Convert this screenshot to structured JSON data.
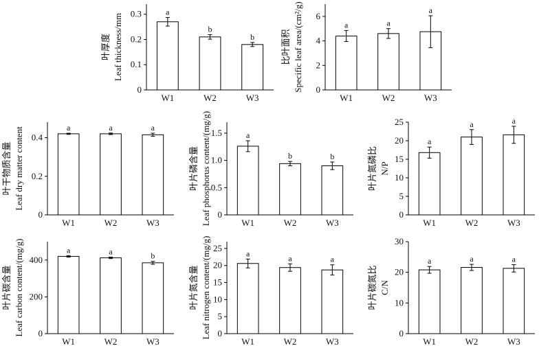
{
  "chart_data": [
    {
      "type": "bar",
      "ylabel_zh": "叶厚度",
      "ylabel_en": "Leaf thickness/mm",
      "categories": [
        "W1",
        "W2",
        "W3"
      ],
      "values": [
        0.27,
        0.21,
        0.18
      ],
      "errors": [
        0.017,
        0.009,
        0.008
      ],
      "letters": [
        "a",
        "b",
        "b"
      ],
      "ylim": [
        0,
        0.34
      ],
      "yticks": [
        0,
        0.1,
        0.2,
        0.3
      ],
      "ytick_labels": [
        "0",
        "0.1",
        "0.2",
        "0.3"
      ]
    },
    {
      "type": "bar",
      "ylabel_zh": "比叶面积",
      "ylabel_en": "Specific leaf area/(cm²/g)",
      "categories": [
        "W1",
        "W2",
        "W3"
      ],
      "values": [
        4.4,
        4.6,
        4.75
      ],
      "errors": [
        0.45,
        0.4,
        1.3
      ],
      "letters": [
        "a",
        "a",
        "a"
      ],
      "ylim": [
        0,
        7
      ],
      "yticks": [
        0,
        2,
        4,
        6
      ],
      "ytick_labels": [
        "0",
        "2",
        "4",
        "6"
      ]
    },
    {
      "type": "bar",
      "ylabel_zh": "叶干物质含量",
      "ylabel_en": "Leaf dry matter content",
      "categories": [
        "W1",
        "W2",
        "W3"
      ],
      "values": [
        0.42,
        0.42,
        0.415
      ],
      "errors": [
        0.003,
        0.004,
        0.008
      ],
      "letters": [
        "a",
        "a",
        "a"
      ],
      "ylim": [
        0,
        0.48
      ],
      "yticks": [
        0,
        0.2,
        0.4
      ],
      "ytick_labels": [
        "0",
        "0.2",
        "0.4"
      ]
    },
    {
      "type": "bar",
      "ylabel_zh": "叶片磷含量",
      "ylabel_en": "Leaf phosphorus content/(mg/g)",
      "categories": [
        "W1",
        "W2",
        "W3"
      ],
      "values": [
        1.26,
        0.94,
        0.9
      ],
      "errors": [
        0.1,
        0.04,
        0.07
      ],
      "letters": [
        "a",
        "b",
        "b"
      ],
      "ylim": [
        0,
        1.7
      ],
      "yticks": [
        0,
        0.5,
        1.0,
        1.5
      ],
      "ytick_labels": [
        "0",
        "0.5",
        "1.0",
        "1.5"
      ]
    },
    {
      "type": "bar",
      "ylabel_zh": "叶片氮磷比",
      "ylabel_en": "N/P",
      "categories": [
        "W1",
        "W2",
        "W3"
      ],
      "values": [
        16.8,
        21.0,
        21.6
      ],
      "errors": [
        1.5,
        2.0,
        2.3
      ],
      "letters": [
        "a",
        "a",
        "a"
      ],
      "ylim": [
        0,
        25
      ],
      "yticks": [
        0,
        5,
        10,
        15,
        20,
        25
      ],
      "ytick_labels": [
        "0",
        "5",
        "10",
        "15",
        "20",
        "25"
      ]
    },
    {
      "type": "bar",
      "ylabel_zh": "叶片碳含量",
      "ylabel_en": "Leaf carbon content/(mg/g)",
      "categories": [
        "W1",
        "W2",
        "W3"
      ],
      "values": [
        420,
        412,
        385
      ],
      "errors": [
        4,
        4,
        8
      ],
      "letters": [
        "a",
        "a",
        "b"
      ],
      "ylim": [
        0,
        500
      ],
      "yticks": [
        0,
        200,
        400
      ],
      "ytick_labels": [
        "0",
        "200",
        "400"
      ]
    },
    {
      "type": "bar",
      "ylabel_zh": "叶片氮含量",
      "ylabel_en": "Leaf nitrogen content/(mg/g)",
      "categories": [
        "W1",
        "W2",
        "W3"
      ],
      "values": [
        20.6,
        19.4,
        18.7
      ],
      "errors": [
        1.3,
        1.1,
        1.5
      ],
      "letters": [
        "a",
        "a",
        "a"
      ],
      "ylim": [
        0,
        27
      ],
      "yticks": [
        0,
        5,
        10,
        15,
        20,
        25
      ],
      "ytick_labels": [
        "0",
        "5",
        "10",
        "15",
        "20",
        "25"
      ]
    },
    {
      "type": "bar",
      "ylabel_zh": "叶片碳氮比",
      "ylabel_en": "C/N",
      "categories": [
        "W1",
        "W2",
        "W3"
      ],
      "values": [
        20.8,
        21.6,
        21.3
      ],
      "errors": [
        1.1,
        1.0,
        1.2
      ],
      "letters": [
        "a",
        "a",
        "a"
      ],
      "ylim": [
        0,
        30
      ],
      "yticks": [
        0,
        10,
        20,
        30
      ],
      "ytick_labels": [
        "0",
        "10",
        "20",
        "30"
      ]
    }
  ]
}
